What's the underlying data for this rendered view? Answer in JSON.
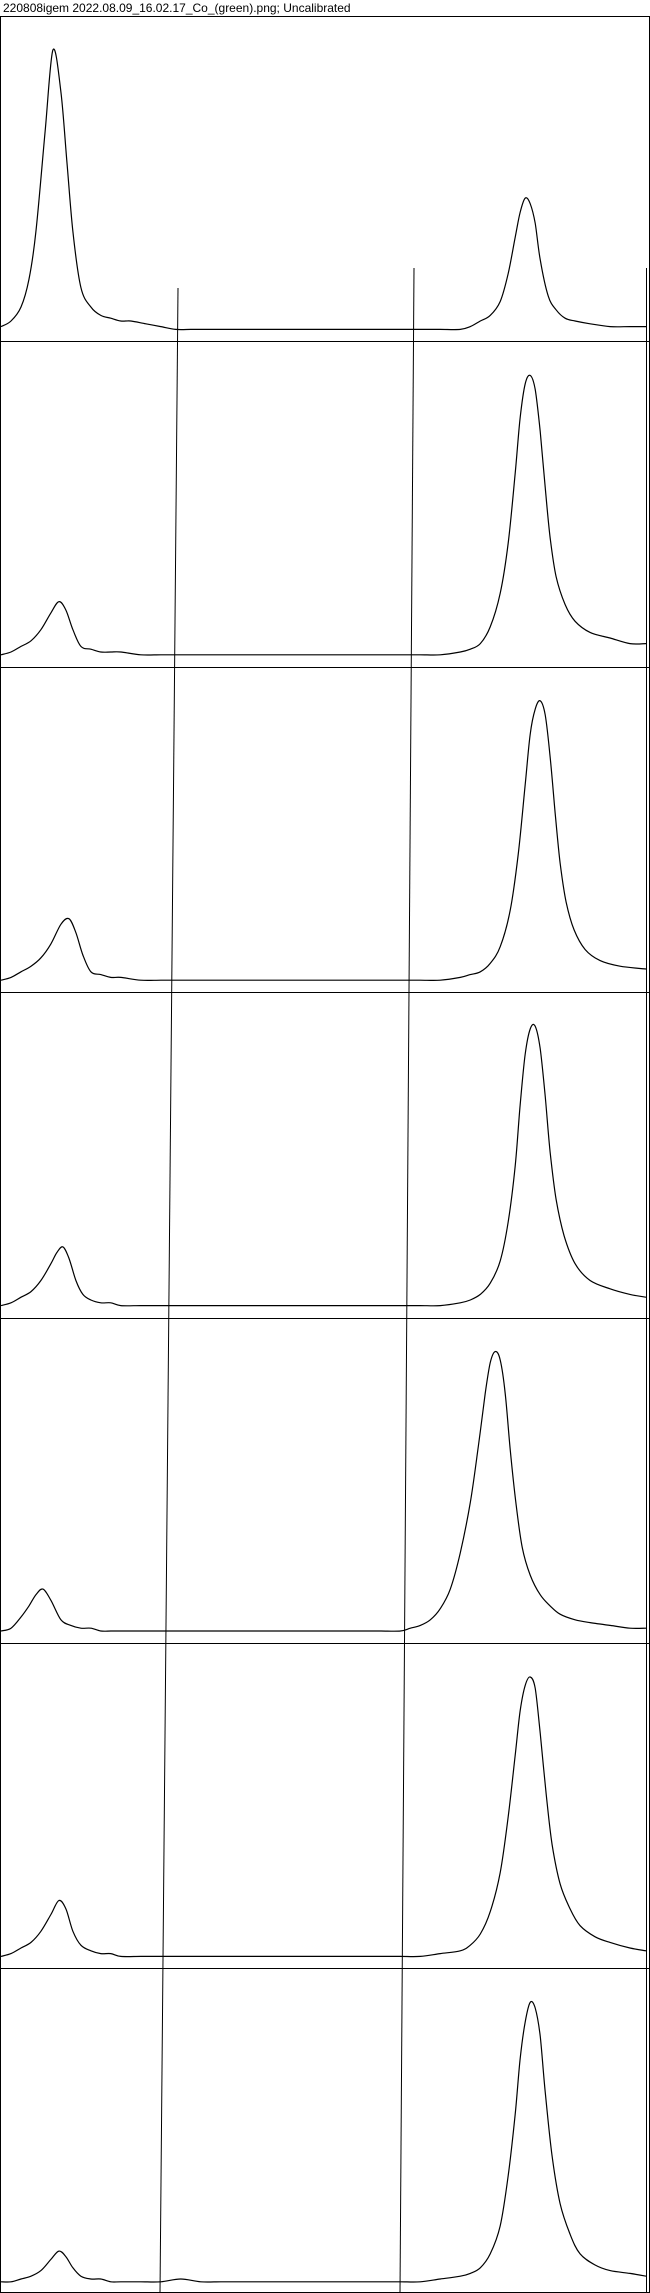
{
  "window": {
    "title": "220808igem 2022.08.09_16.02.17_Co_(green).png; Uncalibrated"
  },
  "chart_data": {
    "type": "line",
    "title": "220808igem 2022.08.09_16.02.17_Co_(green).png; Uncalibrated",
    "xlabel": "",
    "ylabel": "",
    "grid": false,
    "legend": "none",
    "lane_count": 7,
    "lanes": [
      {
        "x": [
          0,
          10,
          20,
          28,
          35,
          44,
          52,
          60,
          66,
          72,
          80,
          90,
          100,
          110,
          120,
          130,
          145,
          160,
          175,
          190,
          200,
          220,
          240,
          260,
          280,
          300,
          320,
          340,
          360,
          380,
          400,
          420,
          440,
          460,
          470,
          480,
          490,
          500,
          508,
          515,
          520,
          525,
          530,
          535,
          540,
          548,
          556,
          565,
          575,
          590,
          610,
          630,
          646
        ],
        "y": [
          0.01,
          0.03,
          0.08,
          0.18,
          0.35,
          0.7,
          1.0,
          0.85,
          0.6,
          0.35,
          0.15,
          0.08,
          0.05,
          0.04,
          0.03,
          0.03,
          0.02,
          0.01,
          0.0,
          0.0,
          0.0,
          0.0,
          0.0,
          0.0,
          0.0,
          0.0,
          0.0,
          0.0,
          0.0,
          0.0,
          0.0,
          0.0,
          0.0,
          0.0,
          0.01,
          0.03,
          0.05,
          0.1,
          0.2,
          0.33,
          0.42,
          0.47,
          0.45,
          0.38,
          0.25,
          0.12,
          0.07,
          0.04,
          0.03,
          0.02,
          0.01,
          0.01,
          0.01
        ]
      },
      {
        "x": [
          0,
          10,
          20,
          30,
          40,
          50,
          58,
          65,
          72,
          80,
          90,
          100,
          110,
          120,
          140,
          160,
          180,
          200,
          220,
          240,
          260,
          280,
          300,
          320,
          340,
          360,
          380,
          400,
          420,
          440,
          460,
          470,
          480,
          490,
          500,
          508,
          515,
          520,
          525,
          530,
          535,
          540,
          545,
          550,
          556,
          565,
          575,
          590,
          610,
          630,
          646
        ],
        "y": [
          0.0,
          0.01,
          0.03,
          0.05,
          0.09,
          0.15,
          0.19,
          0.16,
          0.09,
          0.03,
          0.02,
          0.01,
          0.01,
          0.01,
          0.0,
          0.0,
          0.0,
          0.0,
          0.0,
          0.0,
          0.0,
          0.0,
          0.0,
          0.0,
          0.0,
          0.0,
          0.0,
          0.0,
          0.0,
          0.0,
          0.01,
          0.02,
          0.04,
          0.1,
          0.22,
          0.4,
          0.65,
          0.85,
          0.97,
          1.0,
          0.95,
          0.8,
          0.6,
          0.42,
          0.28,
          0.18,
          0.12,
          0.08,
          0.06,
          0.04,
          0.04
        ]
      },
      {
        "x": [
          0,
          10,
          20,
          30,
          40,
          50,
          60,
          68,
          75,
          82,
          90,
          100,
          110,
          120,
          140,
          160,
          180,
          200,
          220,
          240,
          260,
          280,
          300,
          320,
          340,
          360,
          380,
          400,
          420,
          440,
          460,
          470,
          480,
          490,
          500,
          510,
          518,
          525,
          530,
          535,
          540,
          545,
          550,
          555,
          560,
          566,
          574,
          585,
          600,
          620,
          646
        ],
        "y": [
          0.0,
          0.01,
          0.03,
          0.05,
          0.08,
          0.13,
          0.2,
          0.22,
          0.17,
          0.09,
          0.03,
          0.02,
          0.01,
          0.01,
          0.0,
          0.0,
          0.0,
          0.0,
          0.0,
          0.0,
          0.0,
          0.0,
          0.0,
          0.0,
          0.0,
          0.0,
          0.0,
          0.0,
          0.0,
          0.0,
          0.01,
          0.02,
          0.03,
          0.06,
          0.12,
          0.25,
          0.45,
          0.7,
          0.88,
          0.97,
          1.0,
          0.95,
          0.8,
          0.6,
          0.42,
          0.28,
          0.18,
          0.11,
          0.07,
          0.05,
          0.04
        ]
      },
      {
        "x": [
          0,
          10,
          20,
          30,
          40,
          50,
          56,
          62,
          68,
          75,
          82,
          90,
          100,
          110,
          120,
          140,
          160,
          180,
          200,
          220,
          240,
          260,
          280,
          300,
          320,
          340,
          360,
          380,
          400,
          420,
          440,
          460,
          470,
          480,
          490,
          500,
          508,
          515,
          520,
          525,
          530,
          535,
          540,
          545,
          550,
          556,
          564,
          575,
          590,
          610,
          630,
          646
        ],
        "y": [
          0.0,
          0.01,
          0.03,
          0.05,
          0.09,
          0.15,
          0.19,
          0.21,
          0.17,
          0.09,
          0.04,
          0.02,
          0.01,
          0.01,
          0.0,
          0.0,
          0.0,
          0.0,
          0.0,
          0.0,
          0.0,
          0.0,
          0.0,
          0.0,
          0.0,
          0.0,
          0.0,
          0.0,
          0.0,
          0.0,
          0.0,
          0.01,
          0.02,
          0.04,
          0.08,
          0.16,
          0.3,
          0.5,
          0.72,
          0.9,
          0.99,
          1.0,
          0.92,
          0.75,
          0.55,
          0.38,
          0.25,
          0.15,
          0.09,
          0.06,
          0.04,
          0.03
        ]
      },
      {
        "x": [
          0,
          10,
          20,
          28,
          35,
          42,
          50,
          60,
          70,
          80,
          90,
          100,
          110,
          120,
          140,
          160,
          180,
          200,
          220,
          240,
          260,
          280,
          300,
          320,
          340,
          360,
          380,
          400,
          410,
          420,
          430,
          440,
          450,
          460,
          470,
          478,
          485,
          490,
          495,
          500,
          505,
          510,
          516,
          522,
          530,
          540,
          550,
          560,
          575,
          590,
          610,
          630,
          646
        ],
        "y": [
          0.0,
          0.01,
          0.05,
          0.09,
          0.13,
          0.15,
          0.11,
          0.04,
          0.02,
          0.01,
          0.01,
          0.0,
          0.0,
          0.0,
          0.0,
          0.0,
          0.0,
          0.0,
          0.0,
          0.0,
          0.0,
          0.0,
          0.0,
          0.0,
          0.0,
          0.0,
          0.0,
          0.0,
          0.01,
          0.02,
          0.04,
          0.08,
          0.15,
          0.28,
          0.46,
          0.66,
          0.85,
          0.96,
          1.0,
          0.97,
          0.85,
          0.65,
          0.45,
          0.3,
          0.2,
          0.13,
          0.09,
          0.06,
          0.04,
          0.03,
          0.02,
          0.01,
          0.01
        ]
      },
      {
        "x": [
          0,
          10,
          20,
          30,
          40,
          50,
          58,
          65,
          72,
          80,
          90,
          100,
          110,
          120,
          140,
          160,
          180,
          200,
          220,
          240,
          260,
          280,
          300,
          320,
          340,
          360,
          380,
          400,
          420,
          440,
          460,
          470,
          480,
          490,
          500,
          508,
          515,
          520,
          525,
          530,
          535,
          540,
          546,
          552,
          560,
          570,
          580,
          595,
          610,
          630,
          646
        ],
        "y": [
          0.0,
          0.01,
          0.03,
          0.05,
          0.09,
          0.15,
          0.2,
          0.17,
          0.09,
          0.04,
          0.02,
          0.01,
          0.01,
          0.0,
          0.0,
          0.0,
          0.0,
          0.0,
          0.0,
          0.0,
          0.0,
          0.0,
          0.0,
          0.0,
          0.0,
          0.0,
          0.0,
          0.0,
          0.0,
          0.01,
          0.02,
          0.04,
          0.08,
          0.16,
          0.3,
          0.5,
          0.72,
          0.88,
          0.97,
          1.0,
          0.96,
          0.8,
          0.58,
          0.4,
          0.26,
          0.17,
          0.11,
          0.07,
          0.05,
          0.03,
          0.02
        ]
      },
      {
        "x": [
          0,
          10,
          20,
          30,
          40,
          50,
          58,
          65,
          72,
          80,
          90,
          100,
          110,
          120,
          140,
          160,
          180,
          200,
          220,
          240,
          260,
          280,
          300,
          320,
          340,
          360,
          380,
          400,
          420,
          440,
          460,
          470,
          480,
          490,
          500,
          508,
          515,
          520,
          525,
          530,
          535,
          540,
          545,
          552,
          560,
          570,
          580,
          595,
          610,
          630,
          646
        ],
        "y": [
          0.0,
          0.0,
          0.01,
          0.02,
          0.04,
          0.08,
          0.11,
          0.09,
          0.05,
          0.02,
          0.01,
          0.01,
          0.0,
          0.0,
          0.0,
          0.0,
          0.01,
          0.0,
          0.0,
          0.0,
          0.0,
          0.0,
          0.0,
          0.0,
          0.0,
          0.0,
          0.0,
          0.0,
          0.0,
          0.01,
          0.02,
          0.03,
          0.05,
          0.1,
          0.2,
          0.38,
          0.6,
          0.8,
          0.93,
          1.0,
          0.98,
          0.88,
          0.68,
          0.45,
          0.28,
          0.17,
          0.1,
          0.06,
          0.04,
          0.03,
          0.02
        ]
      }
    ]
  }
}
